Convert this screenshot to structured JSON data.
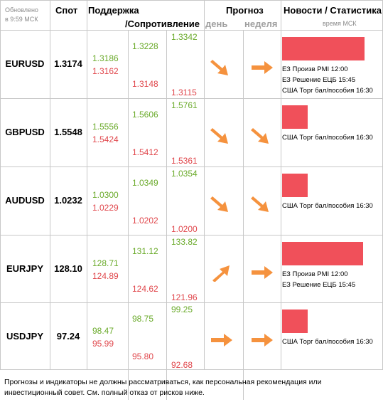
{
  "header": {
    "updated_line1": "Обновлено",
    "updated_line2": "в 9:59 МСК",
    "spot": "Спот",
    "support": "Поддержка",
    "resistance": "/Сопротивление",
    "forecast": "Прогноз",
    "day": "день",
    "week": "неделя",
    "news": "Новости / Статистика",
    "time_msk": "время МСК"
  },
  "colors": {
    "support": "#6aaa2a",
    "resistance": "#e0474c",
    "arrow": "#f5923e",
    "news_bar": "#f0505a"
  },
  "rows": [
    {
      "pair": "EURUSD",
      "spot": "1.3174",
      "s1g": "1.3186",
      "s1r": "1.3162",
      "s2g": "1.3228",
      "s2r": "1.3148",
      "s3g": "1.3342",
      "s3r": "1.3115",
      "day_icon": "arrow-down-right-icon",
      "week_icon": "arrow-right-icon",
      "news": [
        "ЕЗ Произв PMI 12:00",
        "ЕЗ Решение ЕЦБ 15:45",
        "США Торг бал/пособия 16:30"
      ]
    },
    {
      "pair": "GBPUSD",
      "spot": "1.5548",
      "s1g": "1.5556",
      "s1r": "1.5424",
      "s2g": "1.5606",
      "s2r": "1.5412",
      "s3g": "1.5761",
      "s3r": "1.5361",
      "day_icon": "arrow-down-right-icon",
      "week_icon": "arrow-down-right-icon",
      "news": [
        "США Торг бал/пособия 16:30"
      ]
    },
    {
      "pair": "AUDUSD",
      "spot": "1.0232",
      "s1g": "1.0300",
      "s1r": "1.0229",
      "s2g": "1.0349",
      "s2r": "1.0202",
      "s3g": "1.0354",
      "s3r": "1.0200",
      "day_icon": "arrow-down-right-icon",
      "week_icon": "arrow-down-right-icon",
      "news": [
        "США Торг бал/пособия 16:30"
      ]
    },
    {
      "pair": "EURJPY",
      "spot": "128.10",
      "s1g": "128.71",
      "s1r": "124.89",
      "s2g": "131.12",
      "s2r": "124.62",
      "s3g": "133.82",
      "s3r": "121.96",
      "day_icon": "arrow-up-right-icon",
      "week_icon": "arrow-right-icon",
      "news": [
        "ЕЗ Произв PMI 12:00",
        "ЕЗ Решение ЕЦБ 15:45"
      ]
    },
    {
      "pair": "USDJPY",
      "spot": "97.24",
      "s1g": "98.47",
      "s1r": "95.99",
      "s2g": "98.75",
      "s2r": "95.80",
      "s3g": "99.25",
      "s3r": "92.68",
      "day_icon": "arrow-right-icon",
      "week_icon": "arrow-right-icon",
      "news": [
        "США Торг бал/пособия 16:30"
      ]
    }
  ],
  "footer": "Прогнозы и индикаторы не должны рассматриваться, как персональная рекомендация или инвестиционный совет. См. полный отказ от рисков ниже."
}
